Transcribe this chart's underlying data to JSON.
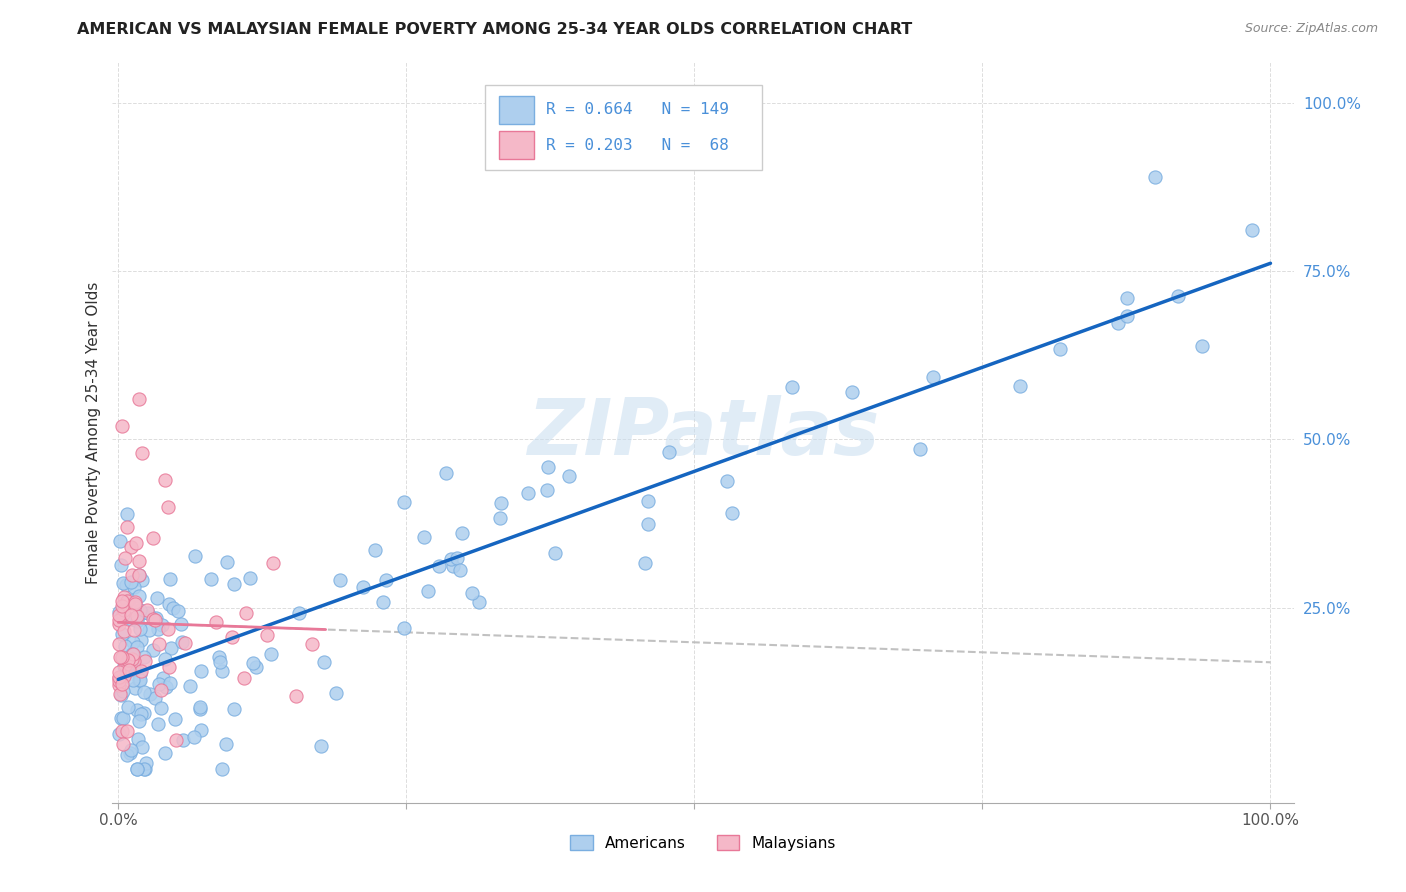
{
  "title": "AMERICAN VS MALAYSIAN FEMALE POVERTY AMONG 25-34 YEAR OLDS CORRELATION CHART",
  "source": "Source: ZipAtlas.com",
  "ylabel": "Female Poverty Among 25-34 Year Olds",
  "american_color": "#aecfee",
  "american_edge": "#7aaee0",
  "malaysian_color": "#f5b8c8",
  "malaysian_edge": "#e87898",
  "american_line_color": "#1565c0",
  "malaysian_line_color": "#e87898",
  "malaysian_dashed_color": "#cccccc",
  "watermark_color": "#c8ddf0",
  "legend_american_label": "Americans",
  "legend_malaysian_label": "Malaysians",
  "R_american": 0.664,
  "N_american": 149,
  "R_malaysian": 0.203,
  "N_malaysian": 68,
  "ytick_color": "#4a90d9",
  "xtick_color": "#555555",
  "title_color": "#222222",
  "source_color": "#888888",
  "grid_color": "#dddddd"
}
